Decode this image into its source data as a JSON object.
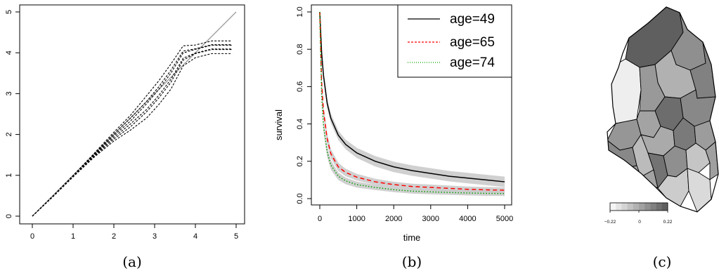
{
  "captions": [
    "(a)",
    "(b)",
    "(c)"
  ],
  "chart_data": [
    {
      "type": "line",
      "panel": "(a)",
      "xlim": [
        0,
        5
      ],
      "ylim": [
        0,
        5
      ],
      "x_ticks": [
        "0",
        "1",
        "2",
        "3",
        "4",
        "5"
      ],
      "y_ticks": [
        "0",
        "1",
        "2",
        "3",
        "4",
        "5"
      ],
      "grid": false,
      "series": [
        {
          "kind": "reference",
          "color": "#a0a0a0",
          "style": "solid",
          "x": [
            0,
            5
          ],
          "y": [
            0,
            5
          ]
        },
        {
          "kind": "bundle",
          "color": "#000000",
          "style": "dashed",
          "x": [
            0,
            0.5,
            1.0,
            1.5,
            2.0,
            2.4,
            2.8,
            3.1,
            3.4,
            3.7,
            4.0,
            4.4,
            4.9
          ],
          "y_center": [
            0,
            0.48,
            0.98,
            1.48,
            1.96,
            2.3,
            2.7,
            3.05,
            3.45,
            3.95,
            4.05,
            4.15,
            4.15
          ],
          "y_spread": [
            0,
            0.01,
            0.02,
            0.05,
            0.12,
            0.2,
            0.28,
            0.3,
            0.32,
            0.25,
            0.15,
            0.15,
            0.15
          ]
        }
      ]
    },
    {
      "type": "line",
      "panel": "(b)",
      "xlabel": "time",
      "ylabel": "survival",
      "xlim": [
        0,
        5000
      ],
      "ylim": [
        0,
        1
      ],
      "x_ticks": [
        "0",
        "1000",
        "2000",
        "3000",
        "4000",
        "5000"
      ],
      "y_ticks": [
        "0.0",
        "0.2",
        "0.4",
        "0.6",
        "0.8",
        "1.0"
      ],
      "grid": false,
      "legend_position": "top-right",
      "x": [
        0,
        50,
        100,
        200,
        300,
        500,
        700,
        1000,
        1500,
        2000,
        2500,
        3000,
        3500,
        4000,
        4500,
        5000
      ],
      "series": [
        {
          "name": "age=49",
          "color": "#000000",
          "style": "solid",
          "values": [
            1.0,
            0.78,
            0.66,
            0.51,
            0.43,
            0.34,
            0.29,
            0.245,
            0.2,
            0.17,
            0.15,
            0.135,
            0.12,
            0.11,
            0.1,
            0.09
          ],
          "band": [
            0.035,
            0.03,
            0.028,
            0.026,
            0.025,
            0.025,
            0.026,
            0.027,
            0.028,
            0.028,
            0.028,
            0.028,
            0.028,
            0.028,
            0.028,
            0.028
          ]
        },
        {
          "name": "age=65",
          "color": "#ff0000",
          "style": "dashed",
          "values": [
            1.0,
            0.62,
            0.47,
            0.32,
            0.24,
            0.17,
            0.14,
            0.115,
            0.09,
            0.075,
            0.065,
            0.06,
            0.055,
            0.05,
            0.047,
            0.045
          ],
          "band": [
            0.03,
            0.03,
            0.03,
            0.028,
            0.025,
            0.022,
            0.02,
            0.018,
            0.016,
            0.015,
            0.015,
            0.015,
            0.015,
            0.015,
            0.015,
            0.015
          ]
        },
        {
          "name": "age=74",
          "color": "#00a000",
          "style": "dotted",
          "values": [
            1.0,
            0.55,
            0.39,
            0.25,
            0.18,
            0.12,
            0.095,
            0.075,
            0.06,
            0.048,
            0.04,
            0.036,
            0.033,
            0.03,
            0.028,
            0.027
          ],
          "band": [
            0.03,
            0.03,
            0.03,
            0.028,
            0.025,
            0.02,
            0.018,
            0.016,
            0.014,
            0.013,
            0.013,
            0.013,
            0.013,
            0.013,
            0.013,
            0.013
          ]
        }
      ]
    },
    {
      "type": "heatmap",
      "panel": "(c)",
      "description_kind": "choropleth",
      "colorbar": {
        "min": -0.22,
        "max": 0.22,
        "tick_labels": [
          "−0.22",
          "0",
          "0.22"
        ]
      },
      "region_values": [
        0.22,
        0.08,
        -0.02,
        -0.2,
        0.05,
        0.12,
        0.1,
        0.18,
        0.02,
        0.06,
        0.0,
        0.14,
        0.04,
        0.1,
        -0.05,
        0.16,
        0.08,
        -0.08,
        0.03,
        -0.1,
        -0.14,
        0.02
      ]
    }
  ]
}
